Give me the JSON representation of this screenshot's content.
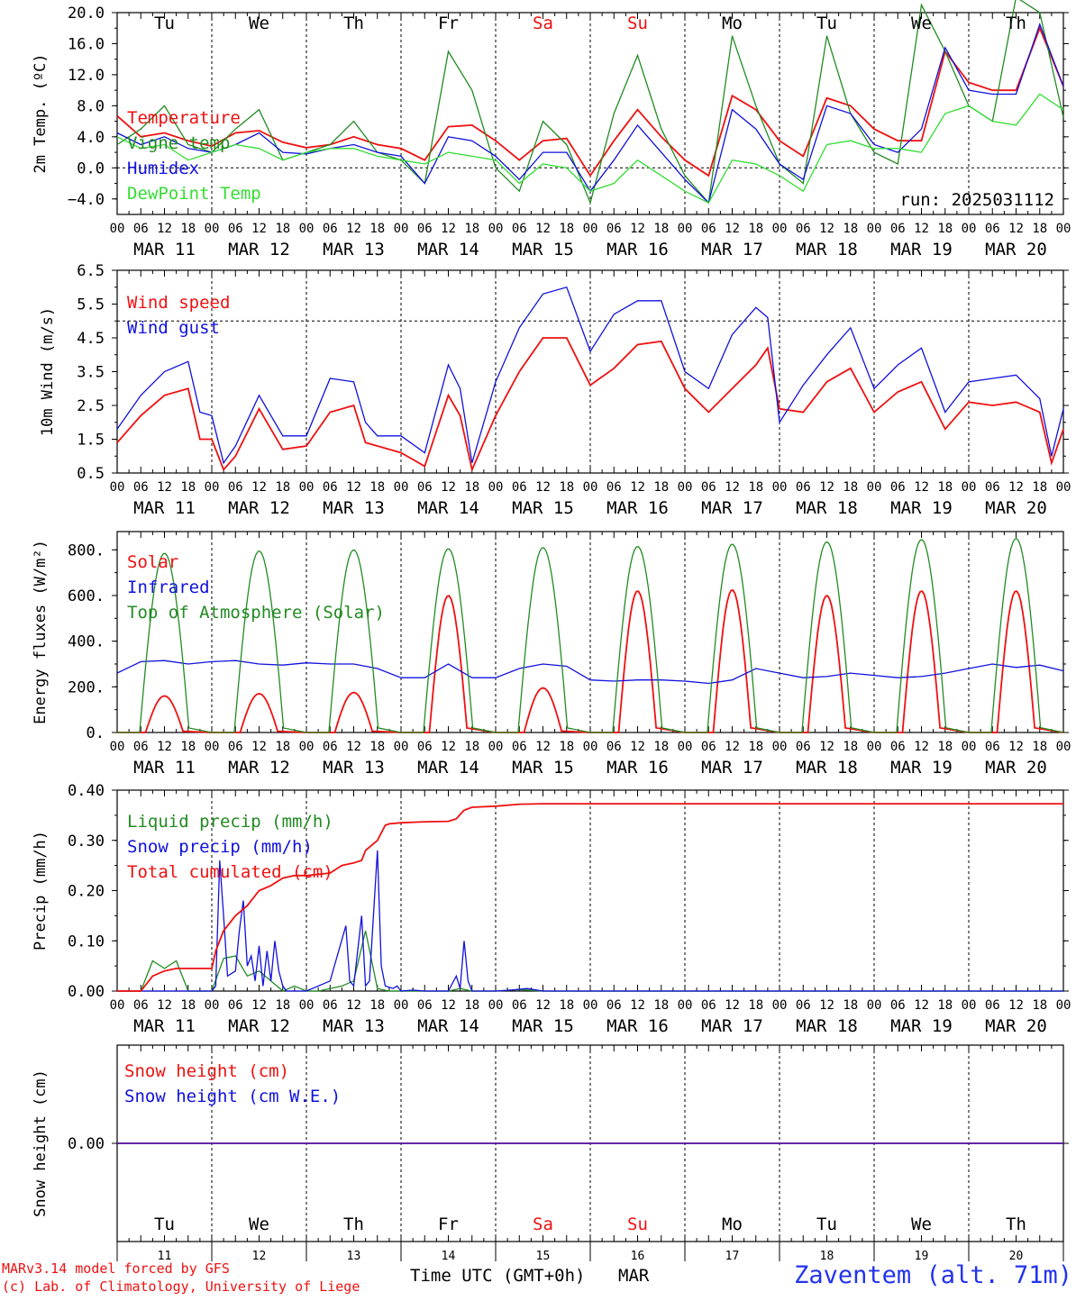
{
  "meta": {
    "run_label": "run: 2025031112",
    "model_line": "MARv3.14 model forced by GFS",
    "lab_line": "(c) Lab. of Climatology, University of Liege",
    "xaxis_title": "Time UTC (GMT+0h)",
    "month": "MAR",
    "station": "Zaventem (alt. 71m)"
  },
  "colors": {
    "red": "#ee1111",
    "green": "#228b22",
    "blue": "#1111dd",
    "lightgreen": "#33dd33",
    "weekend": "#ee1111",
    "axis": "#000000",
    "station": "#2233ee"
  },
  "days": {
    "weekdays": [
      "Tu",
      "We",
      "Th",
      "Fr",
      "Sa",
      "Su",
      "Mo",
      "Tu",
      "We",
      "Th"
    ],
    "weekend_flags": [
      false,
      false,
      false,
      false,
      true,
      true,
      false,
      false,
      false,
      false
    ],
    "date_labels": [
      "MAR 11",
      "MAR 12",
      "MAR 13",
      "MAR 14",
      "MAR 15",
      "MAR 16",
      "MAR 17",
      "MAR 18",
      "MAR 19",
      "MAR 20"
    ],
    "day_numbers": [
      "11",
      "12",
      "13",
      "14",
      "15",
      "16",
      "17",
      "18",
      "19",
      "20"
    ],
    "hour_ticks": [
      "00",
      "06",
      "12",
      "18"
    ]
  },
  "chart_data": [
    {
      "id": "temp",
      "type": "line",
      "ylabel": "2m Temp. (ºC)",
      "ylim": [
        -6,
        20
      ],
      "yticks": [
        -4,
        0,
        4,
        8,
        12,
        16,
        20
      ],
      "ytick_labels": [
        "−4.0",
        "0.0",
        "4.0",
        "8.0",
        "12.0",
        "16.0",
        "20.0"
      ],
      "ref_line": 0,
      "x_unit": "hours since MAR 11 00 UTC",
      "legend_placement": "top-left",
      "series": [
        {
          "name": "Temperature",
          "color": "red",
          "x": [
            0,
            6,
            12,
            18,
            24,
            30,
            36,
            42,
            48,
            54,
            60,
            66,
            72,
            78,
            84,
            90,
            96,
            102,
            108,
            114,
            120,
            126,
            132,
            138,
            144,
            150,
            156,
            162,
            168,
            174,
            180,
            186,
            192,
            198,
            204,
            210,
            216,
            222,
            228,
            234,
            240
          ],
          "y": [
            6.7,
            4,
            4.5,
            3.5,
            2.8,
            4.5,
            4.8,
            3.3,
            2.6,
            3,
            4,
            3,
            2.5,
            1,
            5.3,
            5.5,
            3.5,
            1,
            3.5,
            3.8,
            -1,
            3.5,
            7.5,
            4,
            1,
            -1,
            9.3,
            7.5,
            3.5,
            1.5,
            9,
            8,
            5,
            3.5,
            3.5,
            15,
            11,
            10,
            10,
            18,
            10.5
          ]
        },
        {
          "name": "Vigne temp",
          "color": "green",
          "x": [
            0,
            6,
            12,
            18,
            24,
            30,
            36,
            42,
            48,
            54,
            60,
            66,
            72,
            78,
            84,
            90,
            96,
            102,
            108,
            114,
            120,
            126,
            132,
            138,
            144,
            150,
            156,
            162,
            168,
            174,
            180,
            186,
            192,
            198,
            204,
            210,
            216,
            222,
            228,
            234,
            240
          ],
          "y": [
            3,
            5,
            8,
            3,
            2,
            5,
            7.5,
            1,
            2,
            3,
            6,
            2,
            1,
            -2,
            15,
            10,
            0,
            -3,
            6,
            3,
            -4.5,
            7,
            14.5,
            5,
            -1,
            -4.5,
            17,
            8,
            0.5,
            -2,
            17,
            7,
            2,
            0.5,
            21,
            15,
            8,
            6,
            22,
            20,
            6.5
          ]
        },
        {
          "name": "Humidex",
          "color": "blue",
          "x": [
            0,
            6,
            12,
            18,
            24,
            30,
            36,
            42,
            48,
            54,
            60,
            66,
            72,
            78,
            84,
            90,
            96,
            102,
            108,
            114,
            120,
            126,
            132,
            138,
            144,
            150,
            156,
            162,
            168,
            174,
            180,
            186,
            192,
            198,
            204,
            210,
            216,
            222,
            228,
            234,
            240
          ],
          "y": [
            4.5,
            3,
            4,
            2.5,
            2,
            3,
            4.5,
            2,
            1.8,
            2.5,
            3,
            2,
            1.5,
            -2,
            4,
            3.5,
            1.5,
            -1.5,
            2,
            2,
            -3,
            1,
            5.5,
            2,
            -1.5,
            -4.5,
            7.5,
            5,
            0.5,
            -1.5,
            8,
            7,
            3,
            2,
            5,
            15.5,
            10,
            9.5,
            9.5,
            18.5,
            10.5
          ]
        },
        {
          "name": "DewPoint Temp",
          "color": "lightgreen",
          "x": [
            0,
            6,
            12,
            18,
            24,
            30,
            36,
            42,
            48,
            54,
            60,
            66,
            72,
            78,
            84,
            90,
            96,
            102,
            108,
            114,
            120,
            126,
            132,
            138,
            144,
            150,
            156,
            162,
            168,
            174,
            180,
            186,
            192,
            198,
            204,
            210,
            216,
            222,
            228,
            234,
            240
          ],
          "y": [
            4,
            2.5,
            3,
            1,
            2,
            3,
            2.5,
            1,
            2,
            2.5,
            2.5,
            1.5,
            1,
            0.5,
            2,
            1.5,
            1,
            -2,
            0.5,
            0,
            -3,
            -2,
            1,
            -1,
            -3,
            -4.5,
            1,
            0.5,
            -1,
            -3,
            3,
            3.5,
            2.5,
            2.5,
            2,
            7,
            8,
            6,
            5.5,
            9.5,
            7.5
          ]
        }
      ]
    },
    {
      "id": "wind",
      "type": "line",
      "ylabel": "10m Wind (m/s)",
      "ylim": [
        0.5,
        6.5
      ],
      "yticks": [
        0.5,
        1.5,
        2.5,
        3.5,
        4.5,
        5.5,
        6.5
      ],
      "ytick_labels": [
        "0.5",
        "1.5",
        "2.5",
        "3.5",
        "4.5",
        "5.5",
        "6.5"
      ],
      "ref_line": 5.0,
      "x_unit": "hours since MAR 11 00 UTC",
      "legend_placement": "top-left",
      "series": [
        {
          "name": "Wind speed",
          "color": "red",
          "x": [
            0,
            6,
            12,
            18,
            21,
            24,
            27,
            30,
            36,
            42,
            48,
            54,
            60,
            63,
            66,
            72,
            78,
            84,
            87,
            90,
            96,
            102,
            108,
            114,
            120,
            126,
            132,
            138,
            144,
            150,
            156,
            162,
            165,
            168,
            174,
            180,
            186,
            192,
            198,
            204,
            210,
            216,
            222,
            228,
            234,
            237,
            240
          ],
          "y": [
            1.4,
            2.2,
            2.8,
            3,
            1.5,
            1.5,
            0.6,
            1,
            2.4,
            1.2,
            1.3,
            2.3,
            2.5,
            1.4,
            1.3,
            1.1,
            0.7,
            2.8,
            2.2,
            0.6,
            2.2,
            3.5,
            4.5,
            4.5,
            3.1,
            3.6,
            4.3,
            4.4,
            3,
            2.3,
            3,
            3.7,
            4.2,
            2.4,
            2.3,
            3.2,
            3.6,
            2.3,
            2.9,
            3.2,
            1.8,
            2.6,
            2.5,
            2.6,
            2.3,
            0.8,
            1.8
          ]
        },
        {
          "name": "Wind gust",
          "color": "blue",
          "x": [
            0,
            6,
            12,
            18,
            21,
            24,
            27,
            30,
            36,
            42,
            48,
            54,
            60,
            63,
            66,
            72,
            78,
            84,
            87,
            90,
            96,
            102,
            108,
            114,
            120,
            126,
            132,
            138,
            144,
            150,
            156,
            162,
            165,
            168,
            174,
            180,
            186,
            192,
            198,
            204,
            210,
            216,
            222,
            228,
            234,
            237,
            240
          ],
          "y": [
            1.8,
            2.8,
            3.5,
            3.8,
            2.3,
            2.2,
            0.8,
            1.3,
            2.8,
            1.6,
            1.6,
            3.3,
            3.2,
            2,
            1.6,
            1.6,
            1.1,
            3.7,
            3,
            0.8,
            3.2,
            4.8,
            5.8,
            6,
            4.1,
            5.2,
            5.6,
            5.6,
            3.5,
            3,
            4.6,
            5.4,
            5.1,
            2,
            3.1,
            4,
            4.8,
            3,
            3.7,
            4.2,
            2.3,
            3.2,
            3.3,
            3.4,
            2.7,
            1,
            2.4
          ]
        }
      ]
    },
    {
      "id": "energy",
      "type": "line",
      "ylabel": "Energy fluxes (W/m²)",
      "ylim": [
        0,
        880
      ],
      "yticks": [
        0,
        200,
        400,
        600,
        800
      ],
      "ytick_labels": [
        "0.",
        "200.",
        "400.",
        "600.",
        "800."
      ],
      "x_unit": "hours since MAR 11 00 UTC",
      "legend_placement": "top-left",
      "day_peaks": {
        "toa_solar": [
          785,
          795,
          800,
          805,
          810,
          815,
          825,
          835,
          845,
          850
        ],
        "solar": [
          160,
          170,
          175,
          600,
          195,
          620,
          625,
          600,
          620,
          620
        ]
      },
      "series": [
        {
          "name": "Solar",
          "color": "red",
          "x": [],
          "y": []
        },
        {
          "name": "Infrared",
          "color": "blue",
          "x": [
            0,
            6,
            12,
            18,
            24,
            30,
            36,
            42,
            48,
            54,
            60,
            66,
            72,
            78,
            84,
            90,
            96,
            102,
            108,
            114,
            120,
            126,
            132,
            138,
            144,
            150,
            156,
            162,
            168,
            174,
            180,
            186,
            192,
            198,
            204,
            210,
            216,
            222,
            228,
            234,
            240
          ],
          "y": [
            260,
            310,
            315,
            300,
            310,
            315,
            300,
            295,
            305,
            300,
            300,
            280,
            240,
            240,
            300,
            240,
            240,
            280,
            300,
            290,
            230,
            225,
            230,
            230,
            225,
            215,
            230,
            280,
            260,
            240,
            245,
            260,
            250,
            240,
            245,
            260,
            280,
            300,
            285,
            295,
            270
          ]
        },
        {
          "name": "Top of Atmosphere (Solar)",
          "color": "green",
          "x": [],
          "y": []
        }
      ]
    },
    {
      "id": "precip",
      "type": "line",
      "ylabel": "Precip (mm/h)",
      "ylim": [
        0,
        0.4
      ],
      "yticks": [
        0,
        0.1,
        0.2,
        0.3,
        0.4
      ],
      "ytick_labels": [
        "0.00",
        "0.10",
        "0.20",
        "0.30",
        "0.40"
      ],
      "x_unit": "hours since MAR 11 00 UTC",
      "legend_placement": "top-left",
      "series": [
        {
          "name": "Liquid precip (mm/h)",
          "color": "green",
          "x": [
            0,
            6,
            9,
            12,
            15,
            18,
            21,
            24,
            27,
            30,
            33,
            36,
            39,
            42,
            45,
            48,
            51,
            54,
            57,
            60,
            63,
            66,
            69,
            72,
            78,
            84,
            87,
            90,
            96,
            102,
            108,
            240
          ],
          "y": [
            0,
            0,
            0.06,
            0.045,
            0.06,
            0,
            0,
            0,
            0.065,
            0.07,
            0.03,
            0.04,
            0.02,
            0,
            0.01,
            0,
            0,
            0.005,
            0.01,
            0.02,
            0.12,
            0.005,
            0,
            0,
            0,
            0,
            0.005,
            0,
            0,
            0.003,
            0,
            0
          ]
        },
        {
          "name": "Snow precip (mm/h)",
          "color": "blue",
          "x": [
            0,
            24,
            25,
            26,
            27,
            28,
            30,
            31,
            32,
            33,
            34,
            35,
            36,
            37,
            38,
            39,
            40,
            41,
            42,
            43,
            48,
            54,
            58,
            59,
            60,
            62,
            63,
            64,
            66,
            67,
            68,
            70,
            71,
            72,
            75,
            78,
            84,
            86,
            87,
            88,
            89,
            90,
            96,
            100,
            104,
            108,
            240
          ],
          "y": [
            0,
            0,
            0.01,
            0.26,
            0.15,
            0.03,
            0.04,
            0.12,
            0.18,
            0.05,
            0.07,
            0.02,
            0.09,
            0.01,
            0.08,
            0.02,
            0.1,
            0.04,
            0.01,
            0,
            0,
            0.02,
            0.13,
            0.02,
            0.01,
            0.15,
            0.01,
            0.02,
            0.28,
            0.05,
            0.01,
            0.005,
            0.01,
            0,
            0.002,
            0,
            0,
            0.03,
            0.005,
            0.1,
            0.02,
            0,
            0,
            0.002,
            0.005,
            0,
            0
          ]
        },
        {
          "name": "Total cumulated (cm)",
          "color": "red",
          "x": [
            0,
            6,
            9,
            12,
            15,
            18,
            24,
            25,
            27,
            30,
            33,
            36,
            39,
            42,
            45,
            48,
            54,
            57,
            60,
            62,
            63,
            66,
            68,
            69,
            72,
            78,
            84,
            86,
            88,
            90,
            96,
            102,
            108,
            240
          ],
          "y": [
            0,
            0,
            0.03,
            0.04,
            0.045,
            0.045,
            0.045,
            0.08,
            0.12,
            0.15,
            0.17,
            0.2,
            0.21,
            0.225,
            0.23,
            0.23,
            0.235,
            0.25,
            0.255,
            0.26,
            0.28,
            0.3,
            0.33,
            0.333,
            0.335,
            0.337,
            0.338,
            0.343,
            0.36,
            0.366,
            0.368,
            0.372,
            0.373,
            0.373
          ]
        }
      ]
    },
    {
      "id": "snow",
      "type": "line",
      "ylabel": "Snow height (cm)",
      "ylim": [
        -1,
        1
      ],
      "yticks": [
        0
      ],
      "ytick_labels": [
        "0.00"
      ],
      "x_unit": "hours since MAR 11 00 UTC",
      "legend_placement": "top-left",
      "series": [
        {
          "name": "Snow height (cm)",
          "color": "red",
          "x": [
            0,
            240
          ],
          "y": [
            0,
            0
          ]
        },
        {
          "name": "Snow height (cm W.E.)",
          "color": "blue",
          "x": [
            0,
            240
          ],
          "y": [
            0,
            0
          ]
        }
      ]
    }
  ]
}
